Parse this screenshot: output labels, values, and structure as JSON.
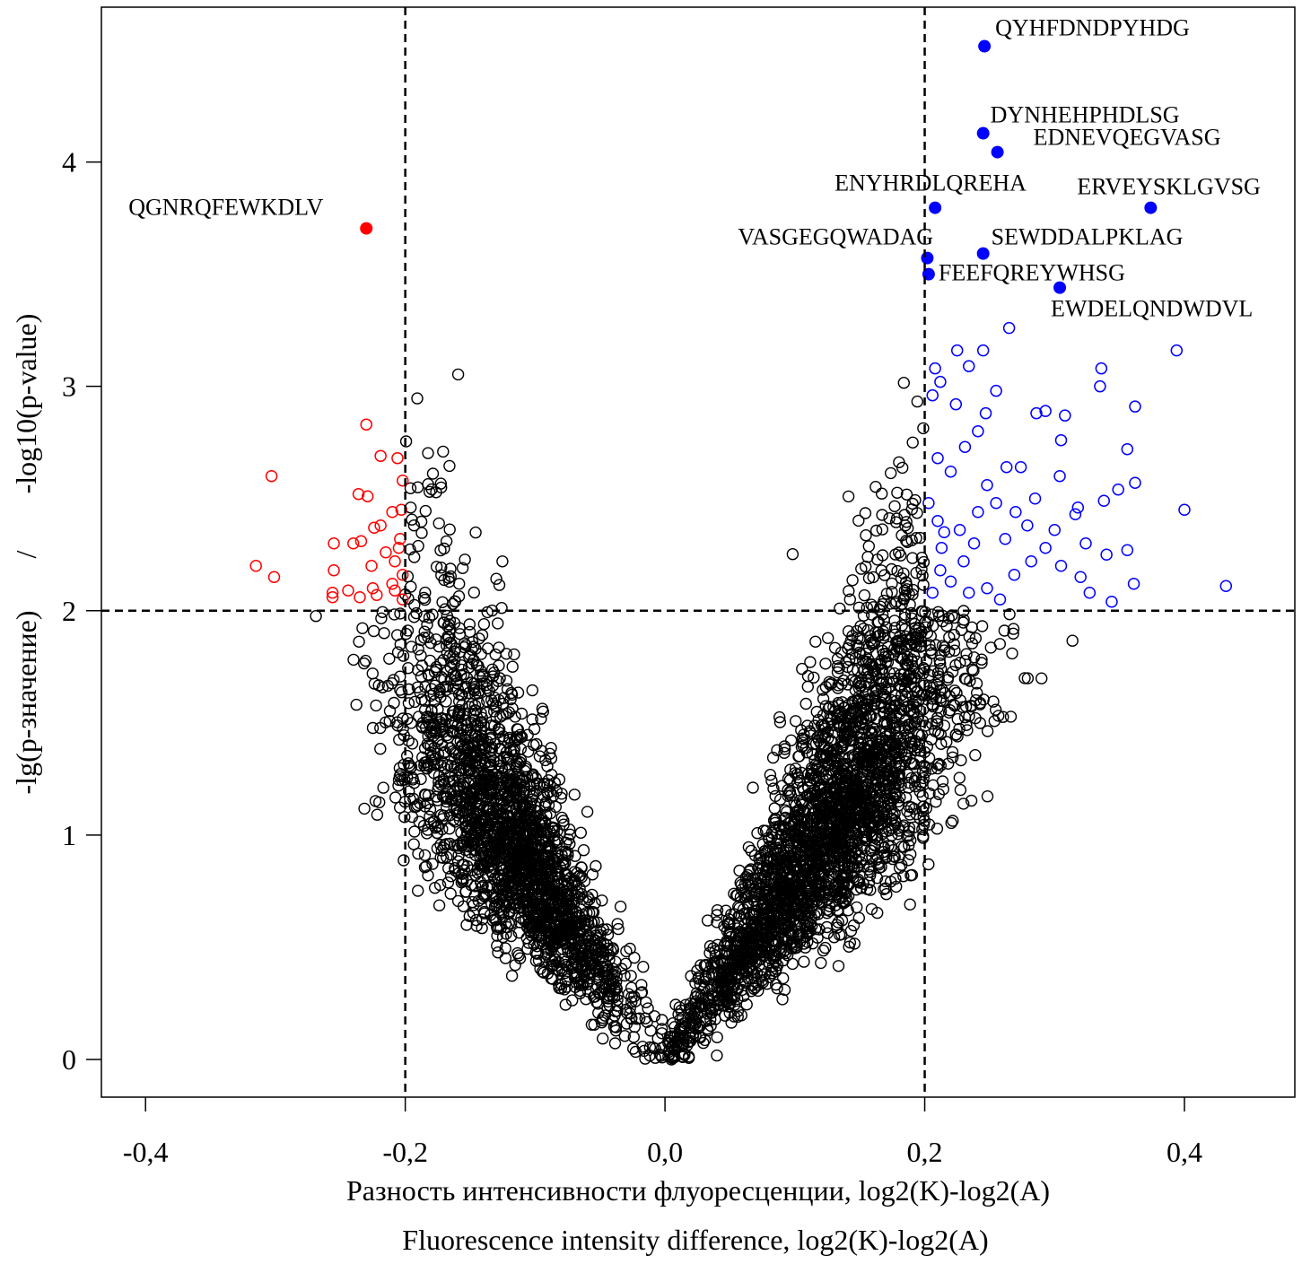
{
  "chart_data": {
    "type": "scatter",
    "title": "",
    "xlabel_ru": "Разность интенсивности флуоресценции, log2(K)-log2(A)",
    "xlabel_en": "Fluorescence intensity difference, log2(K)-log2(A)",
    "ylabel_ru": "-lg(p-значение)",
    "ylabel_sep": "/",
    "ylabel_en": "-log10(p-value)",
    "xlim": [
      -0.434,
      0.485
    ],
    "ylim": [
      -0.168,
      4.69
    ],
    "x_ticks": [
      {
        "v": -0.4,
        "label": "-0,4"
      },
      {
        "v": -0.2,
        "label": "-0,2"
      },
      {
        "v": 0.0,
        "label": "0,0"
      },
      {
        "v": 0.2,
        "label": "0,2"
      },
      {
        "v": 0.4,
        "label": "0,4"
      }
    ],
    "y_ticks": [
      {
        "v": 0,
        "label": "0"
      },
      {
        "v": 1,
        "label": "1"
      },
      {
        "v": 2,
        "label": "2"
      },
      {
        "v": 3,
        "label": "3"
      },
      {
        "v": 4,
        "label": "4"
      }
    ],
    "thresholds": {
      "x": [
        -0.2,
        0.2
      ],
      "y": 2
    },
    "grid": false,
    "colors": {
      "down": "#ff0000",
      "up": "#0000ff",
      "ns": "#000000"
    },
    "labeled_points": [
      {
        "label": "QYHFDNDPYHDG",
        "x": 0.246,
        "y": 4.516,
        "group": "up"
      },
      {
        "label": "DYNHEHPHDLSG",
        "x": 0.245,
        "y": 4.128,
        "group": "up"
      },
      {
        "label": "EDNEVQEGVASG",
        "x": 0.256,
        "y": 4.044,
        "group": "up"
      },
      {
        "label": "ENYHRDLQREHA",
        "x": 0.208,
        "y": 3.796,
        "group": "up"
      },
      {
        "label": "ERVEYSKLGVSG",
        "x": 0.374,
        "y": 3.796,
        "group": "up"
      },
      {
        "label": "SEWDDALPKLAG",
        "x": 0.245,
        "y": 3.592,
        "group": "up"
      },
      {
        "label": "VASGEGQWADAG",
        "x": 0.202,
        "y": 3.572,
        "group": "up"
      },
      {
        "label": "FEEFQREYWHSG",
        "x": 0.203,
        "y": 3.5,
        "group": "up"
      },
      {
        "label": "EWDELQNDWDVL",
        "x": 0.304,
        "y": 3.44,
        "group": "up"
      },
      {
        "label": "QGNRQFEWKDLV",
        "x": -0.23,
        "y": 3.704,
        "group": "down"
      }
    ],
    "down_points": [
      [
        -0.303,
        2.6
      ],
      [
        -0.315,
        2.2
      ],
      [
        -0.301,
        2.15
      ],
      [
        -0.23,
        2.83
      ],
      [
        -0.219,
        2.69
      ],
      [
        -0.206,
        2.68
      ],
      [
        -0.236,
        2.52
      ],
      [
        -0.229,
        2.51
      ],
      [
        -0.255,
        2.3
      ],
      [
        -0.255,
        2.18
      ],
      [
        -0.256,
        2.08
      ],
      [
        -0.256,
        2.06
      ],
      [
        -0.244,
        2.09
      ],
      [
        -0.235,
        2.06
      ],
      [
        -0.222,
        2.07
      ],
      [
        -0.208,
        2.09
      ],
      [
        -0.24,
        2.3
      ],
      [
        -0.234,
        2.31
      ],
      [
        -0.224,
        2.37
      ],
      [
        -0.219,
        2.38
      ],
      [
        -0.215,
        2.26
      ],
      [
        -0.226,
        2.2
      ],
      [
        -0.208,
        2.22
      ],
      [
        -0.205,
        2.28
      ],
      [
        -0.202,
        2.16
      ],
      [
        -0.203,
        2.45
      ],
      [
        -0.202,
        2.58
      ],
      [
        -0.225,
        2.1
      ],
      [
        -0.204,
        2.32
      ],
      [
        -0.21,
        2.44
      ],
      [
        -0.202,
        2.05
      ],
      [
        -0.21,
        2.12
      ]
    ],
    "up_points": [
      [
        0.394,
        3.16
      ],
      [
        0.336,
        3.08
      ],
      [
        0.335,
        3.0
      ],
      [
        0.362,
        2.91
      ],
      [
        0.356,
        2.72
      ],
      [
        0.362,
        2.57
      ],
      [
        0.4,
        2.45
      ],
      [
        0.432,
        2.11
      ],
      [
        0.361,
        2.12
      ],
      [
        0.356,
        2.27
      ],
      [
        0.349,
        2.54
      ],
      [
        0.308,
        2.87
      ],
      [
        0.305,
        2.76
      ],
      [
        0.265,
        3.26
      ],
      [
        0.225,
        3.16
      ],
      [
        0.245,
        3.16
      ],
      [
        0.208,
        3.08
      ],
      [
        0.234,
        3.09
      ],
      [
        0.212,
        3.02
      ],
      [
        0.255,
        2.98
      ],
      [
        0.206,
        2.96
      ],
      [
        0.224,
        2.92
      ],
      [
        0.247,
        2.88
      ],
      [
        0.286,
        2.88
      ],
      [
        0.293,
        2.89
      ],
      [
        0.263,
        2.64
      ],
      [
        0.274,
        2.64
      ],
      [
        0.304,
        2.6
      ],
      [
        0.316,
        2.43
      ],
      [
        0.318,
        2.46
      ],
      [
        0.338,
        2.49
      ],
      [
        0.3,
        2.36
      ],
      [
        0.293,
        2.28
      ],
      [
        0.305,
        2.2
      ],
      [
        0.324,
        2.3
      ],
      [
        0.282,
        2.22
      ],
      [
        0.269,
        2.16
      ],
      [
        0.248,
        2.1
      ],
      [
        0.234,
        2.08
      ],
      [
        0.22,
        2.13
      ],
      [
        0.206,
        2.08
      ],
      [
        0.213,
        2.28
      ],
      [
        0.227,
        2.36
      ],
      [
        0.241,
        2.44
      ],
      [
        0.255,
        2.48
      ],
      [
        0.262,
        2.32
      ],
      [
        0.279,
        2.38
      ],
      [
        0.22,
        2.62
      ],
      [
        0.21,
        2.68
      ],
      [
        0.231,
        2.73
      ],
      [
        0.241,
        2.8
      ],
      [
        0.327,
        2.08
      ],
      [
        0.344,
        2.04
      ],
      [
        0.21,
        2.4
      ],
      [
        0.248,
        2.56
      ],
      [
        0.203,
        2.48
      ],
      [
        0.215,
        2.35
      ],
      [
        0.23,
        2.22
      ],
      [
        0.258,
        2.05
      ],
      [
        0.285,
        2.5
      ],
      [
        0.32,
        2.15
      ],
      [
        0.34,
        2.25
      ],
      [
        0.212,
        2.18
      ],
      [
        0.238,
        2.3
      ],
      [
        0.27,
        2.44
      ]
    ]
  }
}
